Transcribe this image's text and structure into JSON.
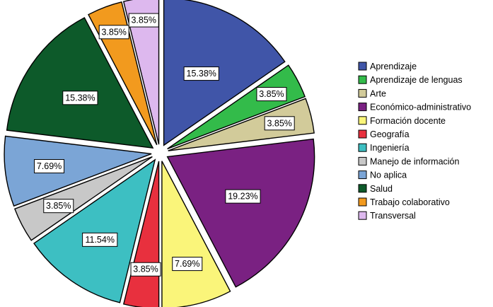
{
  "chart_data": {
    "type": "pie",
    "title": "",
    "legend_position": "right",
    "exploded": true,
    "start": "top, clockwise",
    "series": [
      {
        "name": "Aprendizaje",
        "value": 15.38,
        "label": "15.38%",
        "color": "#4055A8"
      },
      {
        "name": "Aprendizaje de lenguas",
        "value": 3.85,
        "label": "3.85%",
        "color": "#33BB4A"
      },
      {
        "name": "Arte",
        "value": 3.85,
        "label": "3.85%",
        "color": "#D2CB9A"
      },
      {
        "name": "Económico-administrativo",
        "value": 19.23,
        "label": "19.23%",
        "color": "#7A2182"
      },
      {
        "name": "Formación docente",
        "value": 7.69,
        "label": "7.69%",
        "color": "#FAF57A"
      },
      {
        "name": "Geografía",
        "value": 3.85,
        "label": "3.85%",
        "color": "#E8303E"
      },
      {
        "name": "Ingeniería",
        "value": 11.54,
        "label": "11.54%",
        "color": "#3DBFC2"
      },
      {
        "name": "Manejo de información",
        "value": 3.85,
        "label": "3.85%",
        "color": "#C8C8C8"
      },
      {
        "name": "No aplica",
        "value": 7.69,
        "label": "7.69%",
        "color": "#7BA5D6"
      },
      {
        "name": "Salud",
        "value": 15.38,
        "label": "15.38%",
        "color": "#0D5A2A"
      },
      {
        "name": "Trabajo colaborativo",
        "value": 3.85,
        "label": "3.85%",
        "color": "#F29A1E"
      },
      {
        "name": "Transversal",
        "value": 3.85,
        "label": "3.85%",
        "color": "#DDB8EE"
      }
    ]
  }
}
